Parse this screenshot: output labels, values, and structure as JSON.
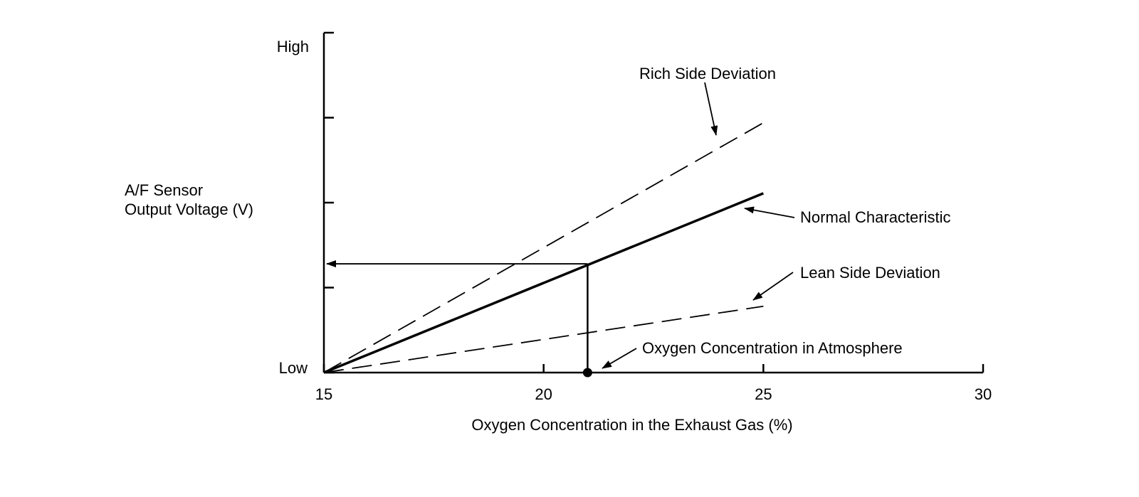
{
  "chart_data": {
    "type": "line",
    "xlabel": "Oxygen Concentration in the Exhaust Gas (%)",
    "ylabel": [
      "A/F Sensor",
      "Output Voltage (V)"
    ],
    "xlim": [
      15,
      30
    ],
    "ylim": [
      0,
      4
    ],
    "x_ticks": [
      15,
      20,
      25,
      30
    ],
    "y_ticks": [
      0,
      1,
      2,
      3,
      4
    ],
    "y_tick_labels": [
      {
        "value": 4,
        "label": "High"
      },
      {
        "value": 0,
        "label": "Low"
      }
    ],
    "series": [
      {
        "name": "Rich Side Deviation",
        "style": "dashed",
        "x": [
          15,
          25
        ],
        "y": [
          0,
          2.94
        ]
      },
      {
        "name": "Normal Characteristic",
        "style": "solid",
        "x": [
          15,
          25
        ],
        "y": [
          0,
          2.11
        ]
      },
      {
        "name": "Lean Side Deviation",
        "style": "dashed",
        "x": [
          15,
          25
        ],
        "y": [
          0,
          0.78
        ]
      }
    ],
    "reference": {
      "name": "Oxygen Concentration in Atmosphere",
      "x": 21,
      "y": 1.28
    },
    "colors": {
      "line": "#000000",
      "background": "#ffffff"
    }
  }
}
